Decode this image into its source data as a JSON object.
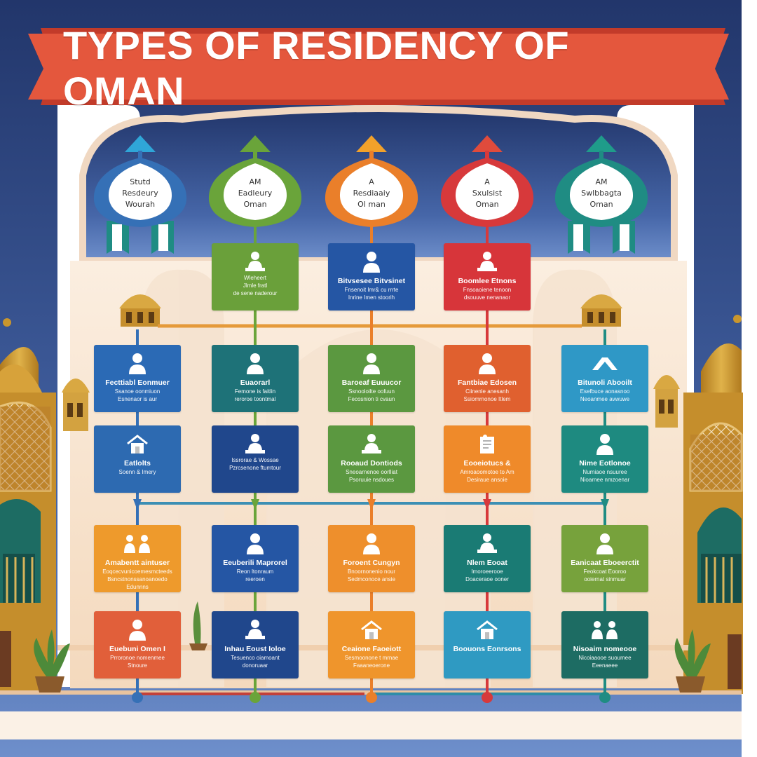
{
  "title": "TYPES OF RESIDENCY OF OMAN",
  "colors": {
    "sky_top": "#22366b",
    "sky_bottom": "#5d7fc4",
    "banner": "#e4573d",
    "gold": "#c9962d",
    "teal_dark": "#1d6c63"
  },
  "domes": [
    {
      "color": "#3570b6",
      "cap": "#2fa6d8",
      "lines": [
        "Stutd",
        "Resdeury",
        "Wourah"
      ]
    },
    {
      "color": "#6aa43a",
      "cap": "#6aa43a",
      "lines": [
        "AM",
        "Eadleury",
        "Oman"
      ]
    },
    {
      "color": "#ea7f2a",
      "cap": "#f2a12a",
      "lines": [
        "A",
        "Resdiaaiy",
        "Ol man"
      ]
    },
    {
      "color": "#d7393b",
      "cap": "#e04b3c",
      "lines": [
        "A",
        "Sxulsist",
        "Oman"
      ]
    },
    {
      "color": "#1f8c83",
      "cap": "#1f9c8a",
      "lines": [
        "AM",
        "Swlbbagta",
        "Oman"
      ]
    }
  ],
  "cards": [
    {
      "col": 1,
      "row": 0,
      "color": "#6aa03a",
      "icon": "person-desk-icon",
      "title": "",
      "desc": [
        "Wleheert",
        "Jlmle fratl",
        "de sene naderour"
      ]
    },
    {
      "col": 2,
      "row": 0,
      "color": "#2556a4",
      "icon": "person-icon",
      "title": "Bitvsesee Bitvsinet",
      "desc": [
        "Fnsenoit lmr& cu rrrte",
        "Inrine Imen stoorih"
      ]
    },
    {
      "col": 3,
      "row": 0,
      "color": "#d7353a",
      "icon": "person-desk-icon",
      "title": "Boomlee Etnons",
      "desc": [
        "Fnsoaoiene tenoon",
        "dsouuve nenanaor"
      ]
    },
    {
      "col": 0,
      "row": 1,
      "color": "#2b6ab5",
      "icon": "person-icon",
      "title": "Fecttiabl Eonmuer",
      "desc": [
        "Ssanoe oonmiuon",
        "Esnenaor is aur"
      ]
    },
    {
      "col": 1,
      "row": 1,
      "color": "#1e7278",
      "icon": "person-icon",
      "title": "Euaorarl",
      "desc": [
        "Femone is faitlin",
        "reroroe toontmal"
      ]
    },
    {
      "col": 2,
      "row": 1,
      "color": "#5b9840",
      "icon": "person-icon",
      "title": "Baroeaf Euuucor",
      "desc": [
        "Ssnooloilte oofuun",
        "Fecosnion ti cvaun"
      ]
    },
    {
      "col": 3,
      "row": 1,
      "color": "#e0602f",
      "icon": "person-icon",
      "title": "Fantbiae Edosen",
      "desc": [
        "Ciinenle anesanh",
        "Ssiomrnonoe Itlem"
      ]
    },
    {
      "col": 4,
      "row": 1,
      "color": "#2f98c6",
      "icon": "handshake-icon",
      "title": "Bitunoli Abooilt",
      "desc": [
        "Esefbuce aonasnoo",
        "Neoanmee avwuwe"
      ]
    },
    {
      "col": 0,
      "row": 2,
      "color": "#2d6ab1",
      "icon": "house-icon",
      "title": "Eatlolts",
      "desc": [
        "Soenn & Imery"
      ]
    },
    {
      "col": 1,
      "row": 2,
      "color": "#20478c",
      "icon": "person-desk-icon",
      "title": "",
      "desc": [
        "Issrorae & Wossae",
        "Pzrcsenone ftumtour"
      ]
    },
    {
      "col": 2,
      "row": 2,
      "color": "#5b9840",
      "icon": "person-desk-icon",
      "title": "Rooaud Dontiods",
      "desc": [
        "Sneoarnenoe oorlliat",
        "Psoruuie nsdoues"
      ]
    },
    {
      "col": 3,
      "row": 2,
      "color": "#ef8a2a",
      "icon": "document-icon",
      "title": "Eooeiotucs &",
      "desc": [
        "Amroaoomotoe to Am",
        "Desiraue ansoie"
      ]
    },
    {
      "col": 4,
      "row": 2,
      "color": "#1e8a80",
      "icon": "person-icon",
      "title": "Nime Eotlonoe",
      "desc": [
        "Numiaoe nsuuree",
        "Nioarnee nmzoenar"
      ]
    },
    {
      "col": 0,
      "row": 3,
      "color": "#ee9a2c",
      "icon": "family-icon",
      "title": "Amabentt aintuser",
      "desc": [
        "Eoqcecvunicoemesmcteeds",
        "Bsncstnonssanoanoedo",
        "Edunnns"
      ]
    },
    {
      "col": 1,
      "row": 3,
      "color": "#2556a4",
      "icon": "person-icon",
      "title": "Eeuberili Maprorel",
      "desc": [
        "Reon ltonraum",
        "reeroen"
      ]
    },
    {
      "col": 2,
      "row": 3,
      "color": "#ee8f2c",
      "icon": "person-icon",
      "title": "Foroent Cungyn",
      "desc": [
        "Bnoornonenio nour",
        "Sedmconoce ansie"
      ]
    },
    {
      "col": 3,
      "row": 3,
      "color": "#1a7b74",
      "icon": "person-desk-icon",
      "title": "Nlem Eooat",
      "desc": [
        "Imoroeerooe",
        "Doaceraoe ooner"
      ]
    },
    {
      "col": 4,
      "row": 3,
      "color": "#77a23c",
      "icon": "person-icon",
      "title": "Eanicaat Eboeerctit",
      "desc": [
        "Feokcoat Eooroo",
        "ooiernat sinmuar"
      ]
    },
    {
      "col": 0,
      "row": 4,
      "color": "#e15f3a",
      "icon": "person-icon",
      "title": "Euebuni Omen I",
      "desc": [
        "Prroronoe nomenmee",
        "Stnoure"
      ]
    },
    {
      "col": 1,
      "row": 4,
      "color": "#20478c",
      "icon": "person-desk-icon",
      "title": "Inhau Eoust Ioloe",
      "desc": [
        "Tesuenco oiamoant",
        "donoruaar"
      ]
    },
    {
      "col": 2,
      "row": 4,
      "color": "#ef952c",
      "icon": "house-icon",
      "title": "Ceaione Faoeiott",
      "desc": [
        "Sesmoonone t mrnae",
        "Faaaneoerone"
      ]
    },
    {
      "col": 3,
      "row": 4,
      "color": "#2f9ac2",
      "icon": "house-icon",
      "title": "Boouons Eonrsons",
      "desc": []
    },
    {
      "col": 4,
      "row": 4,
      "color": "#1d6c63",
      "icon": "family-icon",
      "title": "Nisoaim nomeooe",
      "desc": [
        "Nicoiaaooe suoumee",
        "Eeenaeee"
      ]
    }
  ]
}
